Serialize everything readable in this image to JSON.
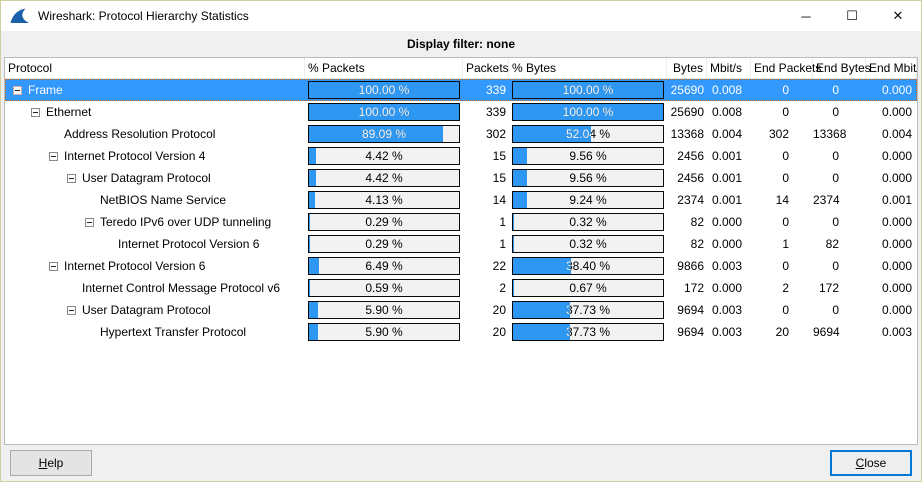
{
  "window": {
    "title": "Wireshark: Protocol Hierarchy Statistics",
    "controls": {
      "minimize": "─",
      "maximize": "☐",
      "close": "✕"
    }
  },
  "filter_bar": {
    "text": "Display filter: none"
  },
  "table": {
    "columns": [
      {
        "label": "Protocol"
      },
      {
        "label": "% Packets"
      },
      {
        "label": "Packets"
      },
      {
        "label": "% Bytes"
      },
      {
        "label": "Bytes"
      },
      {
        "label": "Mbit/s"
      },
      {
        "label": "End Packets"
      },
      {
        "label": "End Bytes"
      },
      {
        "label": "End Mbit/s"
      }
    ],
    "rows": [
      {
        "protocol": "Frame",
        "level": 0,
        "expandable": true,
        "selected": true,
        "pct_packets": "100.00 %",
        "packets": "339",
        "pct_bytes": "100.00 %",
        "bytes": "25690",
        "mbits": "0.008",
        "end_packets": "0",
        "end_bytes": "0",
        "end_mbits": "0.000"
      },
      {
        "protocol": "Ethernet",
        "level": 1,
        "expandable": true,
        "selected": false,
        "pct_packets": "100.00 %",
        "packets": "339",
        "pct_bytes": "100.00 %",
        "bytes": "25690",
        "mbits": "0.008",
        "end_packets": "0",
        "end_bytes": "0",
        "end_mbits": "0.000"
      },
      {
        "protocol": "Address Resolution Protocol",
        "level": 2,
        "expandable": false,
        "selected": false,
        "pct_packets": "89.09 %",
        "packets": "302",
        "pct_bytes": "52.04 %",
        "bytes": "13368",
        "mbits": "0.004",
        "end_packets": "302",
        "end_bytes": "13368",
        "end_mbits": "0.004"
      },
      {
        "protocol": "Internet Protocol Version 4",
        "level": 2,
        "expandable": true,
        "selected": false,
        "pct_packets": "4.42 %",
        "packets": "15",
        "pct_bytes": "9.56 %",
        "bytes": "2456",
        "mbits": "0.001",
        "end_packets": "0",
        "end_bytes": "0",
        "end_mbits": "0.000"
      },
      {
        "protocol": "User Datagram Protocol",
        "level": 3,
        "expandable": true,
        "selected": false,
        "pct_packets": "4.42 %",
        "packets": "15",
        "pct_bytes": "9.56 %",
        "bytes": "2456",
        "mbits": "0.001",
        "end_packets": "0",
        "end_bytes": "0",
        "end_mbits": "0.000"
      },
      {
        "protocol": "NetBIOS Name Service",
        "level": 4,
        "expandable": false,
        "selected": false,
        "pct_packets": "4.13 %",
        "packets": "14",
        "pct_bytes": "9.24 %",
        "bytes": "2374",
        "mbits": "0.001",
        "end_packets": "14",
        "end_bytes": "2374",
        "end_mbits": "0.001"
      },
      {
        "protocol": "Teredo IPv6 over UDP tunneling",
        "level": 4,
        "expandable": true,
        "selected": false,
        "pct_packets": "0.29 %",
        "packets": "1",
        "pct_bytes": "0.32 %",
        "bytes": "82",
        "mbits": "0.000",
        "end_packets": "0",
        "end_bytes": "0",
        "end_mbits": "0.000"
      },
      {
        "protocol": "Internet Protocol Version 6",
        "level": 5,
        "expandable": false,
        "selected": false,
        "pct_packets": "0.29 %",
        "packets": "1",
        "pct_bytes": "0.32 %",
        "bytes": "82",
        "mbits": "0.000",
        "end_packets": "1",
        "end_bytes": "82",
        "end_mbits": "0.000"
      },
      {
        "protocol": "Internet Protocol Version 6",
        "level": 2,
        "expandable": true,
        "selected": false,
        "pct_packets": "6.49 %",
        "packets": "22",
        "pct_bytes": "38.40 %",
        "bytes": "9866",
        "mbits": "0.003",
        "end_packets": "0",
        "end_bytes": "0",
        "end_mbits": "0.000"
      },
      {
        "protocol": "Internet Control Message Protocol v6",
        "level": 3,
        "expandable": false,
        "selected": false,
        "pct_packets": "0.59 %",
        "packets": "2",
        "pct_bytes": "0.67 %",
        "bytes": "172",
        "mbits": "0.000",
        "end_packets": "2",
        "end_bytes": "172",
        "end_mbits": "0.000"
      },
      {
        "protocol": "User Datagram Protocol",
        "level": 3,
        "expandable": true,
        "selected": false,
        "pct_packets": "5.90 %",
        "packets": "20",
        "pct_bytes": "37.73 %",
        "bytes": "9694",
        "mbits": "0.003",
        "end_packets": "0",
        "end_bytes": "0",
        "end_mbits": "0.000"
      },
      {
        "protocol": "Hypertext Transfer Protocol",
        "level": 4,
        "expandable": false,
        "selected": false,
        "pct_packets": "5.90 %",
        "packets": "20",
        "pct_bytes": "37.73 %",
        "bytes": "9694",
        "mbits": "0.003",
        "end_packets": "20",
        "end_bytes": "9694",
        "end_mbits": "0.003"
      }
    ]
  },
  "footer": {
    "help_label": "Help",
    "close_label": "Close"
  },
  "icons": {
    "app": "wireshark-fin",
    "expander": "minus-box"
  },
  "colors": {
    "selection_blue": "#3398fb",
    "bar_fill": "#2e97f2",
    "bar_track": "#f2f2f2",
    "window_border": "#d3cfa2",
    "default_button_border": "#0078d7",
    "focus_dotted": "#d96313"
  }
}
